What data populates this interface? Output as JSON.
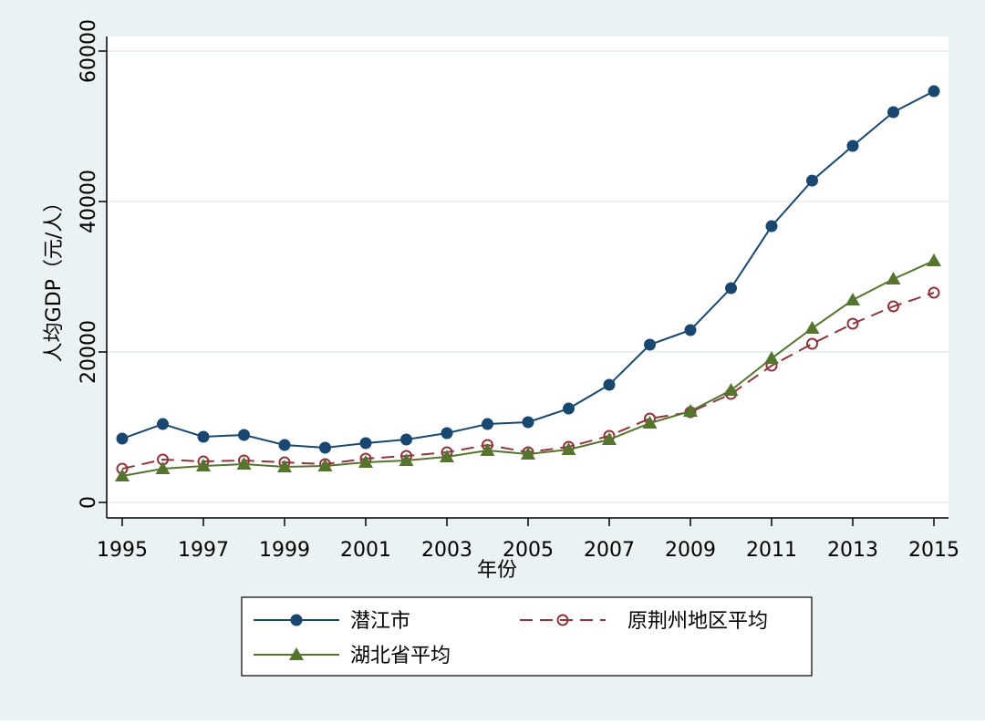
{
  "chart_data": {
    "type": "line",
    "title": "",
    "xlabel": "年份",
    "ylabel": "人均GDP（元/人）",
    "xlim": [
      1995,
      2015
    ],
    "ylim": [
      0,
      60000
    ],
    "xticks": [
      "1995",
      "1997",
      "1999",
      "2001",
      "2003",
      "2005",
      "2007",
      "2009",
      "2011",
      "2013",
      "2015"
    ],
    "yticks": [
      "0",
      "20000",
      "40000",
      "60000"
    ],
    "grid": true,
    "legend_position": "bottom",
    "x": [
      1995,
      1996,
      1997,
      1998,
      1999,
      2000,
      2001,
      2002,
      2003,
      2004,
      2005,
      2006,
      2007,
      2008,
      2009,
      2010,
      2011,
      2012,
      2013,
      2014,
      2015
    ],
    "series": [
      {
        "name": "潜江市",
        "color": "#1a476f",
        "marker": "filled-circle",
        "dash": "solid",
        "values": [
          8480,
          10420,
          8730,
          8970,
          7640,
          7270,
          7880,
          8360,
          9210,
          10420,
          10670,
          12480,
          15640,
          20970,
          22910,
          28480,
          36720,
          42780,
          47390,
          51880,
          54660
        ]
      },
      {
        "name": "原荆州地区平均",
        "color": "#90353b",
        "marker": "hollow-circle",
        "dash": "dashed",
        "values": [
          4480,
          5700,
          5450,
          5580,
          5330,
          5090,
          5820,
          6180,
          6670,
          7640,
          6670,
          7390,
          8850,
          11150,
          12000,
          14420,
          18180,
          21090,
          23760,
          26060,
          27880
        ]
      },
      {
        "name": "湖北省平均",
        "color": "#55752f",
        "marker": "triangle",
        "dash": "solid",
        "values": [
          3510,
          4480,
          4850,
          5090,
          4730,
          4850,
          5330,
          5580,
          6060,
          6910,
          6420,
          7030,
          8360,
          10540,
          12120,
          14910,
          19150,
          23150,
          26910,
          29700,
          32120
        ]
      }
    ]
  }
}
